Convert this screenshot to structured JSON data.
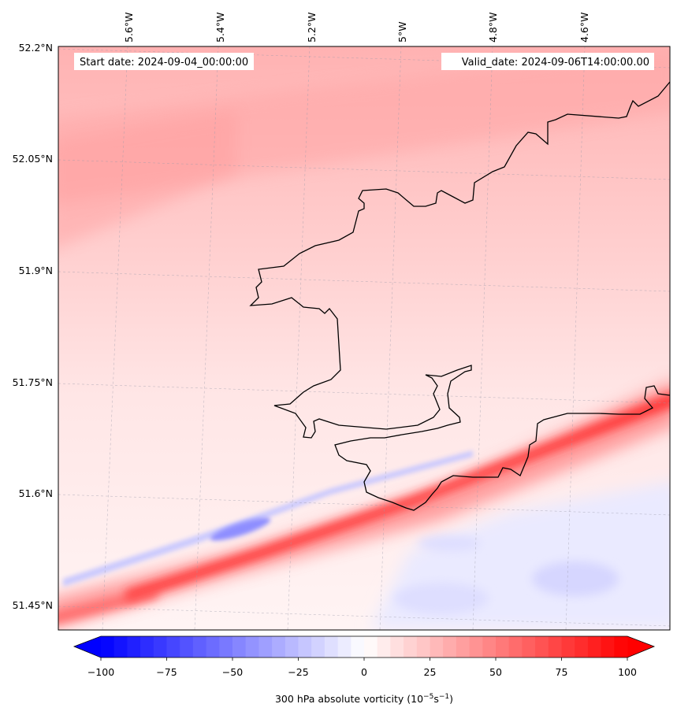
{
  "map": {
    "start_date": "Start date: 2024-09-04_00:00:00",
    "valid_date": "Valid_date: 2024-09-06T14:00:00.00",
    "lon_labels": [
      "5.6°W",
      "5.4°W",
      "5.2°W",
      "5°W",
      "4.8°W",
      "4.6°W"
    ],
    "lat_labels": [
      "52.2°N",
      "52.05°N",
      "51.9°N",
      "51.75°N",
      "51.6°N",
      "51.45°N"
    ],
    "colorbar": {
      "label": "300 hPa absolute vorticity (10",
      "label_exp1": "−5",
      "label_mid": "s",
      "label_exp2": "−1",
      "label_end": ")",
      "ticks": [
        "−100",
        "−75",
        "−50",
        "−25",
        "0",
        "25",
        "50",
        "75",
        "100"
      ],
      "min": -100,
      "max": 100,
      "colors": {
        "negative": "#0000ff",
        "zero": "#ffffff",
        "positive": "#ff0000"
      }
    }
  }
}
